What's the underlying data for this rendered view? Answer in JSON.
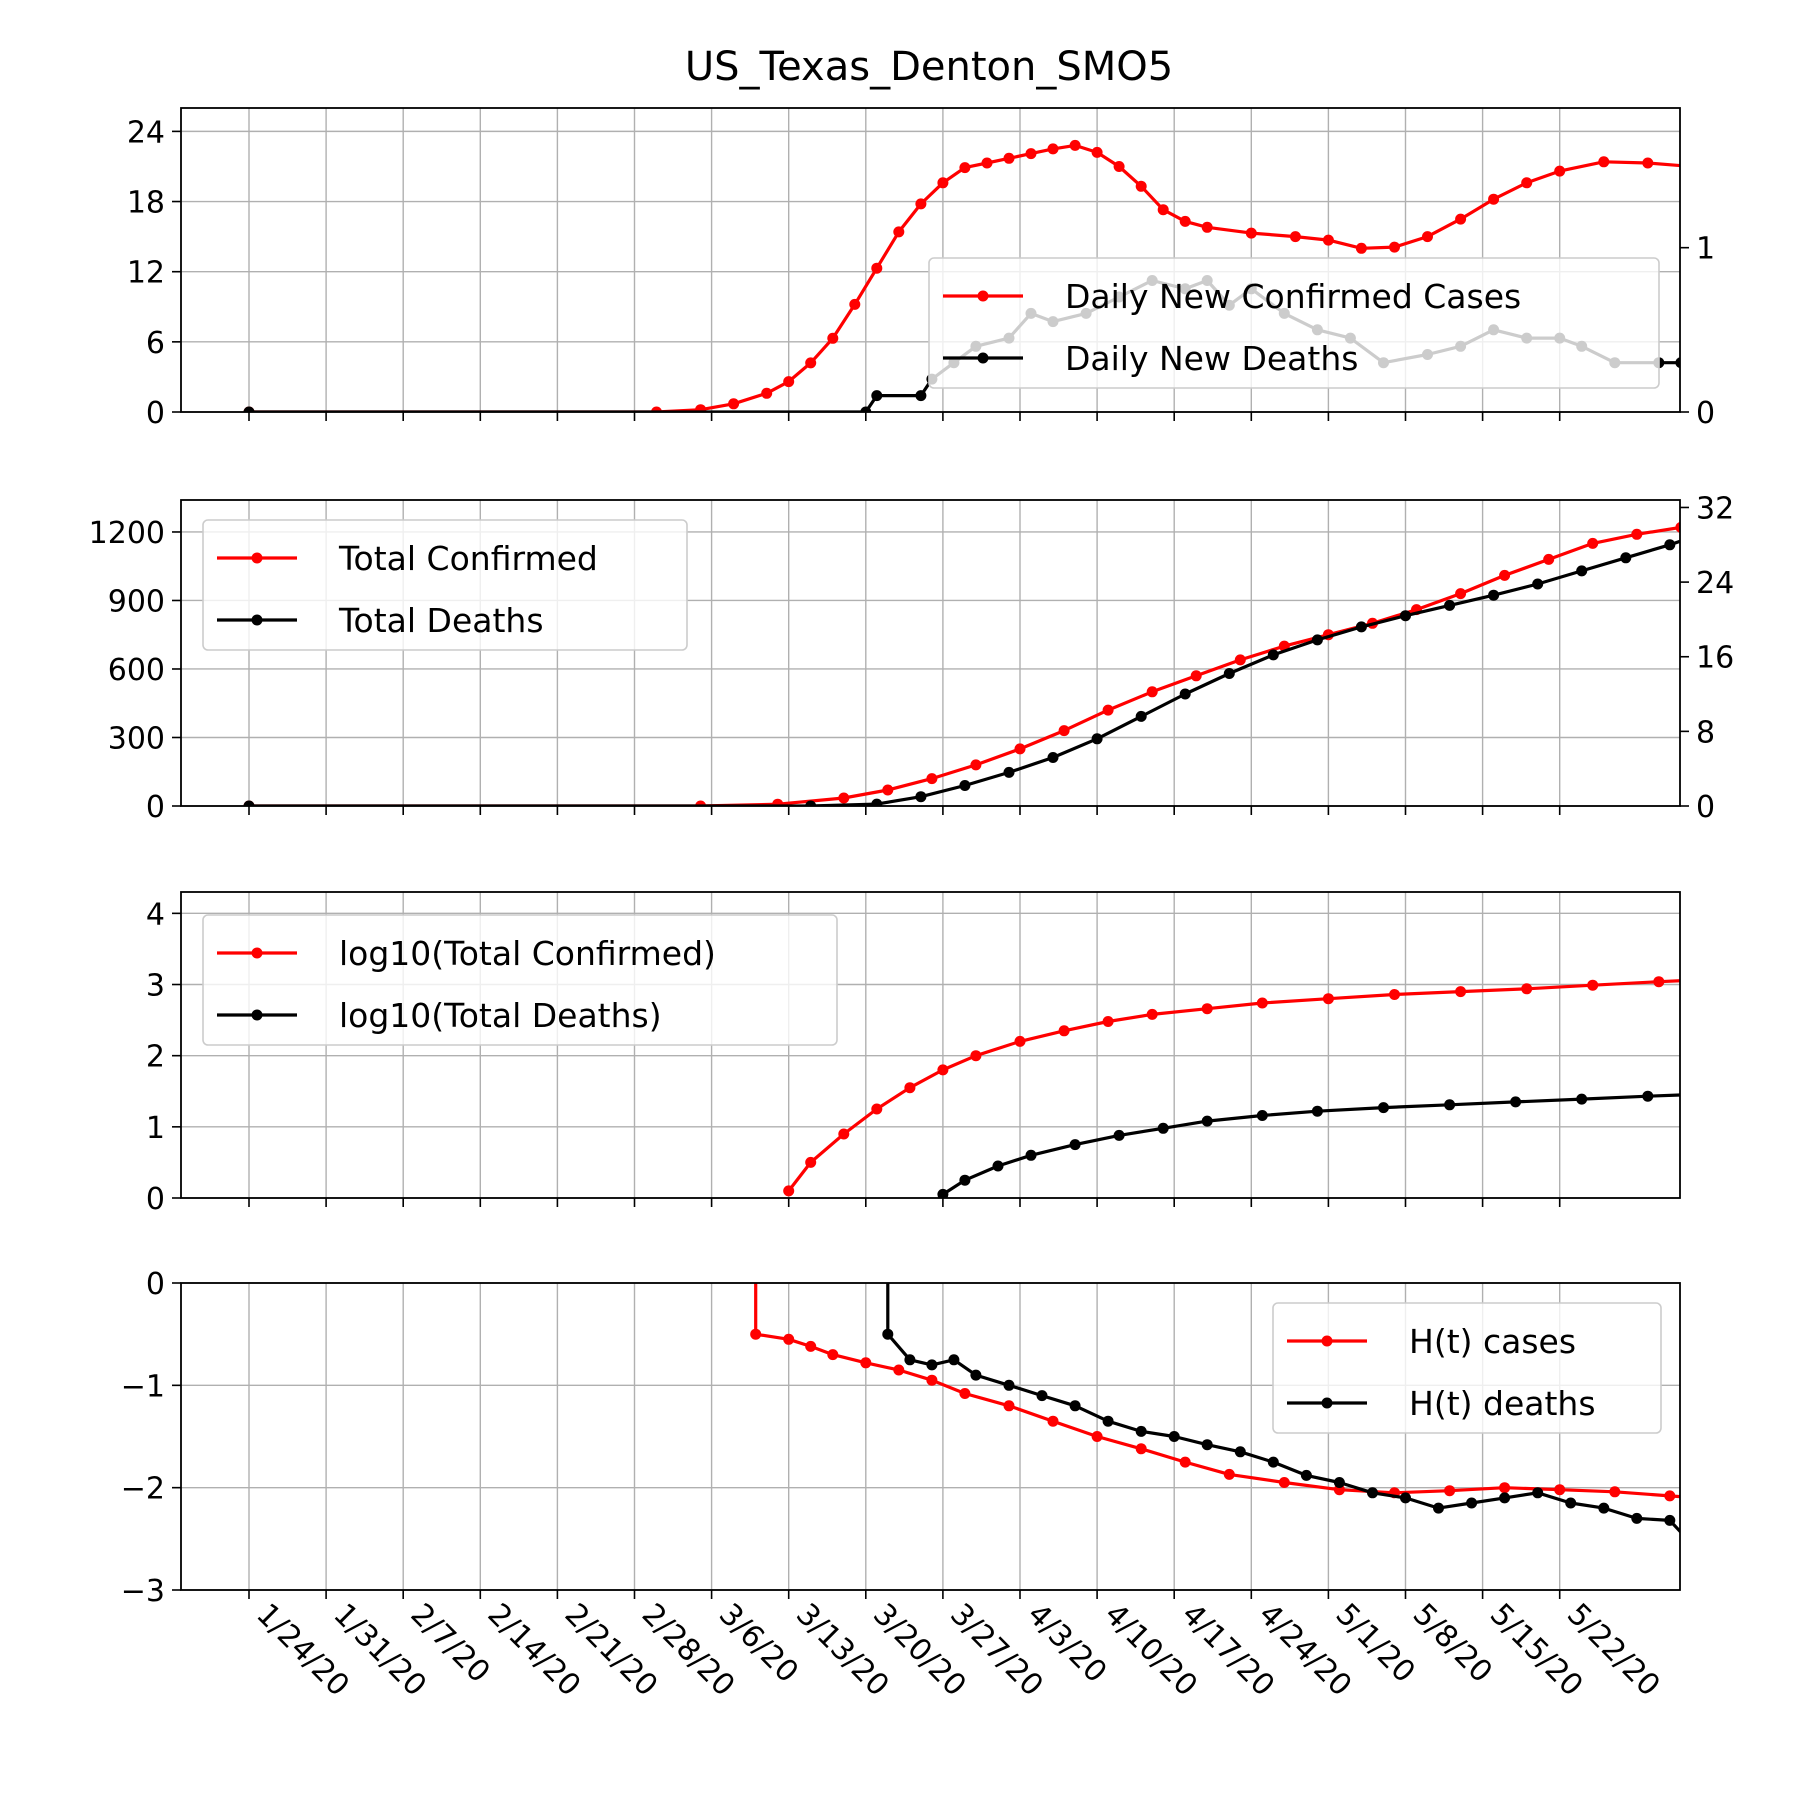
{
  "chart_data": {
    "title": "US_Texas_Denton_SMO5",
    "x_dates": [
      "1/24/20",
      "1/31/20",
      "2/7/20",
      "2/14/20",
      "2/21/20",
      "2/28/20",
      "3/6/20",
      "3/13/20",
      "3/20/20",
      "3/27/20",
      "4/3/20",
      "4/10/20",
      "4/17/20",
      "4/24/20",
      "5/1/20",
      "5/8/20",
      "5/15/20",
      "5/22/20"
    ],
    "subplots": [
      {
        "type": "line",
        "left_ylim": [
          0,
          26
        ],
        "left_yticks": [
          0,
          6,
          12,
          18,
          24
        ],
        "right_ylim": [
          0,
          1.85
        ],
        "right_yticks": [
          0,
          1
        ],
        "grid": true,
        "legend_position": "center-right",
        "series": [
          {
            "name": "Daily New Confirmed Cases",
            "color": "#ff0000",
            "axis": "left",
            "points": [
              [
                "1/24/20",
                0
              ],
              [
                "3/1/20",
                0
              ],
              [
                "3/5/20",
                0.2
              ],
              [
                "3/8/20",
                0.7
              ],
              [
                "3/11/20",
                1.6
              ],
              [
                "3/13/20",
                2.6
              ],
              [
                "3/15/20",
                4.2
              ],
              [
                "3/17/20",
                6.3
              ],
              [
                "3/19/20",
                9.2
              ],
              [
                "3/21/20",
                12.3
              ],
              [
                "3/23/20",
                15.4
              ],
              [
                "3/25/20",
                17.8
              ],
              [
                "3/27/20",
                19.6
              ],
              [
                "3/29/20",
                20.9
              ],
              [
                "3/31/20",
                21.3
              ],
              [
                "4/2/20",
                21.7
              ],
              [
                "4/4/20",
                22.1
              ],
              [
                "4/6/20",
                22.5
              ],
              [
                "4/8/20",
                22.8
              ],
              [
                "4/10/20",
                22.2
              ],
              [
                "4/12/20",
                21.0
              ],
              [
                "4/14/20",
                19.3
              ],
              [
                "4/16/20",
                17.3
              ],
              [
                "4/18/20",
                16.3
              ],
              [
                "4/20/20",
                15.8
              ],
              [
                "4/24/20",
                15.3
              ],
              [
                "4/28/20",
                15.0
              ],
              [
                "5/1/20",
                14.7
              ],
              [
                "5/4/20",
                14.0
              ],
              [
                "5/7/20",
                14.1
              ],
              [
                "5/10/20",
                15.0
              ],
              [
                "5/13/20",
                16.5
              ],
              [
                "5/16/20",
                18.2
              ],
              [
                "5/19/20",
                19.6
              ],
              [
                "5/22/20",
                20.6
              ],
              [
                "5/26/20",
                21.4
              ],
              [
                "5/30/20",
                21.3
              ],
              [
                "6/3/20",
                21.0
              ],
              [
                "6/6/20",
                21.0
              ]
            ]
          },
          {
            "name": "Daily New Deaths",
            "color": "#000000",
            "axis": "right",
            "points": [
              [
                "1/24/20",
                0
              ],
              [
                "3/20/20",
                0
              ],
              [
                "3/21/20",
                0.1
              ],
              [
                "3/25/20",
                0.1
              ],
              [
                "3/26/20",
                0.2
              ],
              [
                "3/28/20",
                0.3
              ],
              [
                "3/30/20",
                0.4
              ],
              [
                "4/2/20",
                0.45
              ],
              [
                "4/4/20",
                0.6
              ],
              [
                "4/6/20",
                0.55
              ],
              [
                "4/9/20",
                0.6
              ],
              [
                "4/12/20",
                0.7
              ],
              [
                "4/15/20",
                0.8
              ],
              [
                "4/18/20",
                0.75
              ],
              [
                "4/20/20",
                0.8
              ],
              [
                "4/22/20",
                0.65
              ],
              [
                "4/24/20",
                0.75
              ],
              [
                "4/27/20",
                0.6
              ],
              [
                "4/30/20",
                0.5
              ],
              [
                "5/3/20",
                0.45
              ],
              [
                "5/6/20",
                0.3
              ],
              [
                "5/10/20",
                0.35
              ],
              [
                "5/13/20",
                0.4
              ],
              [
                "5/16/20",
                0.5
              ],
              [
                "5/19/20",
                0.45
              ],
              [
                "5/22/20",
                0.45
              ],
              [
                "5/24/20",
                0.4
              ],
              [
                "5/27/20",
                0.3
              ],
              [
                "5/31/20",
                0.3
              ],
              [
                "6/2/20",
                0.3
              ],
              [
                "6/3/20",
                0.2
              ],
              [
                "6/4/20",
                0.3
              ],
              [
                "6/6/20",
                0.3
              ]
            ]
          }
        ]
      },
      {
        "type": "line",
        "left_ylim": [
          0,
          1340
        ],
        "left_yticks": [
          0,
          300,
          600,
          900,
          1200
        ],
        "right_ylim": [
          0,
          32.8
        ],
        "right_yticks": [
          0,
          8,
          16,
          24,
          32
        ],
        "grid": true,
        "legend_position": "upper-left",
        "series": [
          {
            "name": "Total Confirmed",
            "color": "#ff0000",
            "axis": "left",
            "points": [
              [
                "1/24/20",
                0
              ],
              [
                "3/5/20",
                0
              ],
              [
                "3/12/20",
                8
              ],
              [
                "3/18/20",
                35
              ],
              [
                "3/22/20",
                70
              ],
              [
                "3/26/20",
                120
              ],
              [
                "3/30/20",
                180
              ],
              [
                "4/3/20",
                250
              ],
              [
                "4/7/20",
                330
              ],
              [
                "4/11/20",
                420
              ],
              [
                "4/15/20",
                500
              ],
              [
                "4/19/20",
                570
              ],
              [
                "4/23/20",
                640
              ],
              [
                "4/27/20",
                700
              ],
              [
                "5/1/20",
                750
              ],
              [
                "5/5/20",
                800
              ],
              [
                "5/9/20",
                860
              ],
              [
                "5/13/20",
                930
              ],
              [
                "5/17/20",
                1010
              ],
              [
                "5/21/20",
                1080
              ],
              [
                "5/25/20",
                1150
              ],
              [
                "5/29/20",
                1190
              ],
              [
                "6/2/20",
                1220
              ],
              [
                "6/6/20",
                1240
              ]
            ]
          },
          {
            "name": "Total Deaths",
            "color": "#000000",
            "axis": "right",
            "points": [
              [
                "1/24/20",
                0
              ],
              [
                "3/15/20",
                0
              ],
              [
                "3/21/20",
                0.2
              ],
              [
                "3/25/20",
                1
              ],
              [
                "3/29/20",
                2.2
              ],
              [
                "4/2/20",
                3.6
              ],
              [
                "4/6/20",
                5.2
              ],
              [
                "4/10/20",
                7.2
              ],
              [
                "4/14/20",
                9.6
              ],
              [
                "4/18/20",
                12
              ],
              [
                "4/22/20",
                14.2
              ],
              [
                "4/26/20",
                16.2
              ],
              [
                "4/30/20",
                17.8
              ],
              [
                "5/4/20",
                19.2
              ],
              [
                "5/8/20",
                20.4
              ],
              [
                "5/12/20",
                21.5
              ],
              [
                "5/16/20",
                22.6
              ],
              [
                "5/20/20",
                23.8
              ],
              [
                "5/24/20",
                25.2
              ],
              [
                "5/28/20",
                26.6
              ],
              [
                "6/1/20",
                28
              ],
              [
                "6/6/20",
                30
              ]
            ]
          }
        ]
      },
      {
        "type": "line",
        "left_ylim": [
          0,
          4.3
        ],
        "left_yticks": [
          0,
          1,
          2,
          3,
          4
        ],
        "grid": true,
        "legend_position": "upper-left",
        "series": [
          {
            "name": "log10(Total Confirmed)",
            "color": "#ff0000",
            "axis": "left",
            "points": [
              [
                "3/13/20",
                0.1
              ],
              [
                "3/15/20",
                0.5
              ],
              [
                "3/18/20",
                0.9
              ],
              [
                "3/21/20",
                1.25
              ],
              [
                "3/24/20",
                1.55
              ],
              [
                "3/27/20",
                1.8
              ],
              [
                "3/30/20",
                2.0
              ],
              [
                "4/3/20",
                2.2
              ],
              [
                "4/7/20",
                2.35
              ],
              [
                "4/11/20",
                2.48
              ],
              [
                "4/15/20",
                2.58
              ],
              [
                "4/20/20",
                2.66
              ],
              [
                "4/25/20",
                2.74
              ],
              [
                "5/1/20",
                2.8
              ],
              [
                "5/7/20",
                2.86
              ],
              [
                "5/13/20",
                2.9
              ],
              [
                "5/19/20",
                2.94
              ],
              [
                "5/25/20",
                2.99
              ],
              [
                "5/31/20",
                3.04
              ],
              [
                "6/6/20",
                3.08
              ]
            ]
          },
          {
            "name": "log10(Total Deaths)",
            "color": "#000000",
            "axis": "left",
            "points": [
              [
                "3/27/20",
                0.05
              ],
              [
                "3/29/20",
                0.25
              ],
              [
                "4/1/20",
                0.45
              ],
              [
                "4/4/20",
                0.6
              ],
              [
                "4/8/20",
                0.75
              ],
              [
                "4/12/20",
                0.88
              ],
              [
                "4/16/20",
                0.98
              ],
              [
                "4/20/20",
                1.08
              ],
              [
                "4/25/20",
                1.16
              ],
              [
                "4/30/20",
                1.22
              ],
              [
                "5/6/20",
                1.27
              ],
              [
                "5/12/20",
                1.31
              ],
              [
                "5/18/20",
                1.35
              ],
              [
                "5/24/20",
                1.39
              ],
              [
                "5/30/20",
                1.43
              ],
              [
                "6/6/20",
                1.47
              ]
            ]
          }
        ]
      },
      {
        "type": "line",
        "left_ylim": [
          -3,
          0
        ],
        "left_yticks": [
          -3,
          -2,
          -1,
          0
        ],
        "grid": true,
        "legend_position": "upper-right",
        "series": [
          {
            "name": "H(t) cases",
            "color": "#ff0000",
            "axis": "left",
            "points": [
              [
                "3/10/20",
                0.3
              ],
              [
                "3/10/20",
                -0.5
              ],
              [
                "3/13/20",
                -0.55
              ],
              [
                "3/15/20",
                -0.62
              ],
              [
                "3/17/20",
                -0.7
              ],
              [
                "3/20/20",
                -0.78
              ],
              [
                "3/23/20",
                -0.85
              ],
              [
                "3/26/20",
                -0.95
              ],
              [
                "3/29/20",
                -1.08
              ],
              [
                "4/2/20",
                -1.2
              ],
              [
                "4/6/20",
                -1.35
              ],
              [
                "4/10/20",
                -1.5
              ],
              [
                "4/14/20",
                -1.62
              ],
              [
                "4/18/20",
                -1.75
              ],
              [
                "4/22/20",
                -1.87
              ],
              [
                "4/27/20",
                -1.95
              ],
              [
                "5/2/20",
                -2.02
              ],
              [
                "5/7/20",
                -2.05
              ],
              [
                "5/12/20",
                -2.03
              ],
              [
                "5/17/20",
                -2.0
              ],
              [
                "5/22/20",
                -2.02
              ],
              [
                "5/27/20",
                -2.04
              ],
              [
                "6/1/20",
                -2.08
              ],
              [
                "6/6/20",
                -2.12
              ]
            ]
          },
          {
            "name": "H(t) deaths",
            "color": "#000000",
            "axis": "left",
            "points": [
              [
                "3/22/20",
                0.3
              ],
              [
                "3/22/20",
                -0.5
              ],
              [
                "3/24/20",
                -0.75
              ],
              [
                "3/26/20",
                -0.8
              ],
              [
                "3/28/20",
                -0.75
              ],
              [
                "3/30/20",
                -0.9
              ],
              [
                "4/2/20",
                -1.0
              ],
              [
                "4/5/20",
                -1.1
              ],
              [
                "4/8/20",
                -1.2
              ],
              [
                "4/11/20",
                -1.35
              ],
              [
                "4/14/20",
                -1.45
              ],
              [
                "4/17/20",
                -1.5
              ],
              [
                "4/20/20",
                -1.58
              ],
              [
                "4/23/20",
                -1.65
              ],
              [
                "4/26/20",
                -1.75
              ],
              [
                "4/29/20",
                -1.88
              ],
              [
                "5/2/20",
                -1.95
              ],
              [
                "5/5/20",
                -2.05
              ],
              [
                "5/8/20",
                -2.1
              ],
              [
                "5/11/20",
                -2.2
              ],
              [
                "5/14/20",
                -2.15
              ],
              [
                "5/17/20",
                -2.1
              ],
              [
                "5/20/20",
                -2.05
              ],
              [
                "5/23/20",
                -2.15
              ],
              [
                "5/26/20",
                -2.2
              ],
              [
                "5/29/20",
                -2.3
              ],
              [
                "6/1/20",
                -2.32
              ],
              [
                "6/3/20",
                -2.55
              ],
              [
                "6/4/20",
                -2.35
              ],
              [
                "6/6/20",
                -2.36
              ]
            ]
          }
        ]
      }
    ]
  }
}
